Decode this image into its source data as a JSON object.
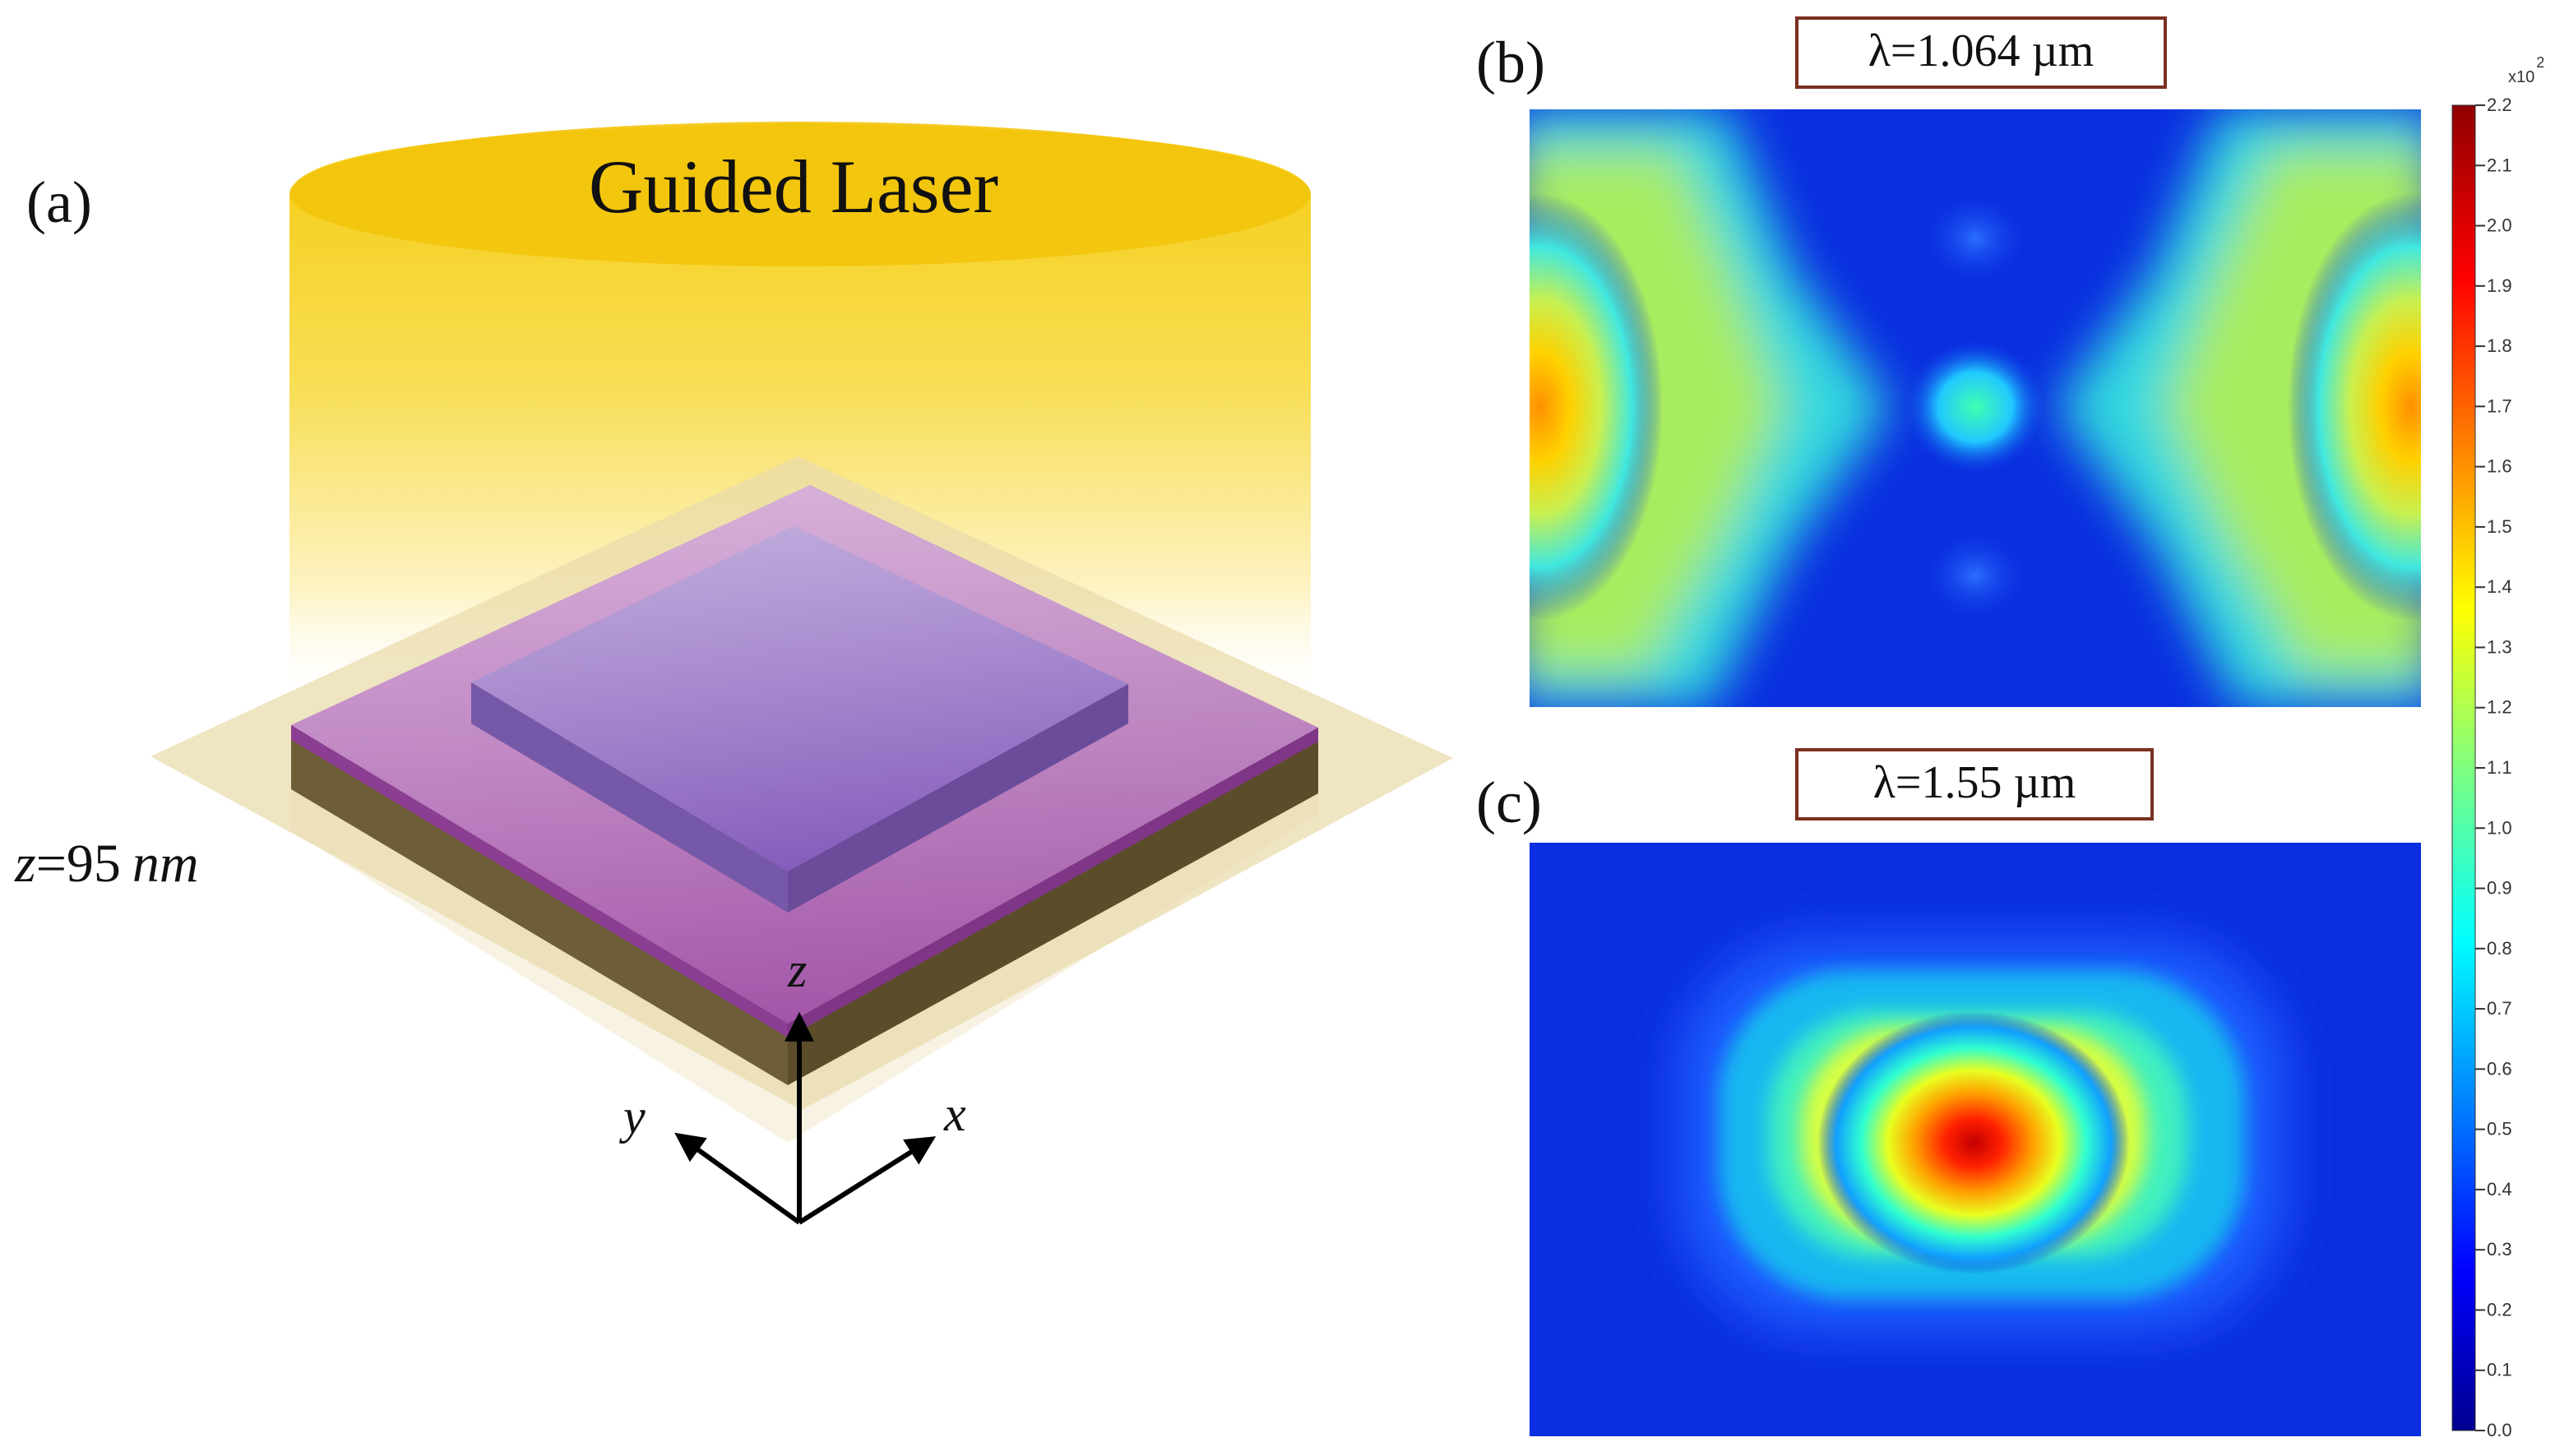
{
  "panels": {
    "a": {
      "label": "(a)",
      "beam_label": "Guided Laser",
      "thickness_prefix": "z",
      "thickness_value": "=95",
      "thickness_unit": "nm",
      "axes": {
        "z": "z",
        "y": "y",
        "x": "x"
      }
    },
    "b": {
      "label": "(b)",
      "wavelength_label": "λ=1.064 µm"
    },
    "c": {
      "label": "(c)",
      "wavelength_label": "λ=1.55 µm"
    }
  },
  "colorbar": {
    "scale_base": "x10",
    "scale_exponent": "2",
    "min": 0.0,
    "max": 2.2,
    "ticks": [
      "0.0",
      "0.1",
      "0.2",
      "0.3",
      "0.4",
      "0.5",
      "0.6",
      "0.7",
      "0.8",
      "0.9",
      "1.0",
      "1.1",
      "1.2",
      "1.3",
      "1.4",
      "1.5",
      "1.6",
      "1.7",
      "1.8",
      "1.9",
      "2.0",
      "2.1",
      "2.2"
    ]
  },
  "colors": {
    "beam": "#f7d21b",
    "top_layer": "#a45aa8",
    "ridge": "#8a5fc0",
    "substrate_side": "#6f5f3a",
    "plane": "#e8d8a8",
    "map_blue": "#0a2ee0",
    "label_box_border": "#7a3020"
  }
}
